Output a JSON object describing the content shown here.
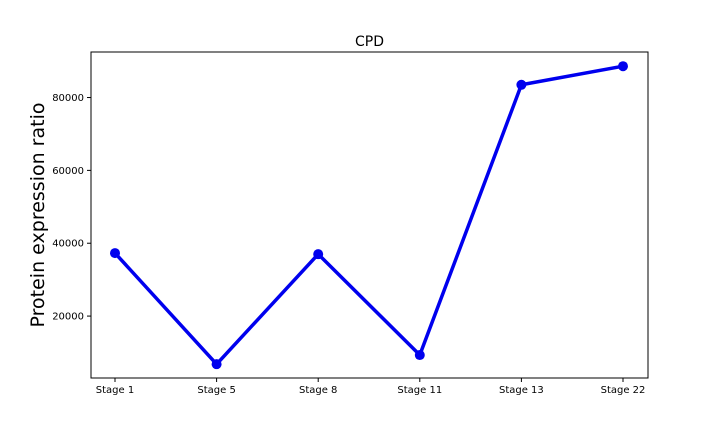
{
  "chart_data": {
    "type": "line",
    "title": "CPD",
    "xlabel": "",
    "ylabel": "Protein expression ratio",
    "categories": [
      "Stage 1",
      "Stage 5",
      "Stage 8",
      "Stage 11",
      "Stage 13",
      "Stage 22"
    ],
    "series": [
      {
        "values": [
          37300,
          6800,
          37000,
          9300,
          83500,
          88600
        ],
        "color": "#0000ee"
      }
    ],
    "ylim": [
      3000,
      92500
    ],
    "yticks": [
      20000,
      40000,
      60000,
      80000
    ],
    "ytick_labels": [
      "20000",
      "40000",
      "60000",
      "80000"
    ],
    "grid": false,
    "legend": false
  }
}
